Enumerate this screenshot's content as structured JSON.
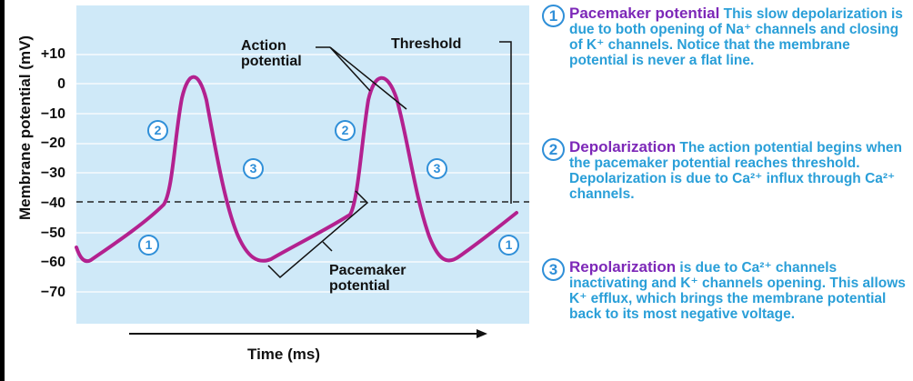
{
  "y_axis": {
    "label": "Membrane potential (mV)",
    "ticks": [
      "+10",
      "0",
      "−10",
      "−20",
      "−30",
      "−40",
      "−50",
      "−60",
      "−70"
    ]
  },
  "x_axis": {
    "label": "Time (ms)"
  },
  "annotations": {
    "action_potential_line1": "Action",
    "action_potential_line2": "potential",
    "threshold": "Threshold",
    "pacemaker_line1": "Pacemaker",
    "pacemaker_line2": "potential"
  },
  "curve_markers": [
    "1",
    "2",
    "3",
    "1",
    "2",
    "3",
    "1"
  ],
  "colors": {
    "plot_background": "#cfe9f8",
    "gridline": "#ffffff",
    "curve": "#b3218f",
    "marker": "#2f8fd8",
    "legend_title": "#7d28b8",
    "legend_text": "#2a9fd8"
  },
  "legend": [
    {
      "number": "1",
      "title": "Pacemaker potential",
      "text": " This slow depolarization is due to both  opening of Na⁺ channels and closing of K⁺ channels. Notice that the membrane potential is never a flat line."
    },
    {
      "number": "2",
      "title": "Depolarization",
      "text": " The action potential begins when the pacemaker potential reaches threshold. Depolarization is due to Ca²⁺ influx through Ca²⁺ channels."
    },
    {
      "number": "3",
      "title": "Repolarization",
      "text": " is due to Ca²⁺ channels inactivating and K⁺ channels opening. This allows K⁺ efflux, which brings the membrane potential back to its most negative voltage."
    }
  ]
}
